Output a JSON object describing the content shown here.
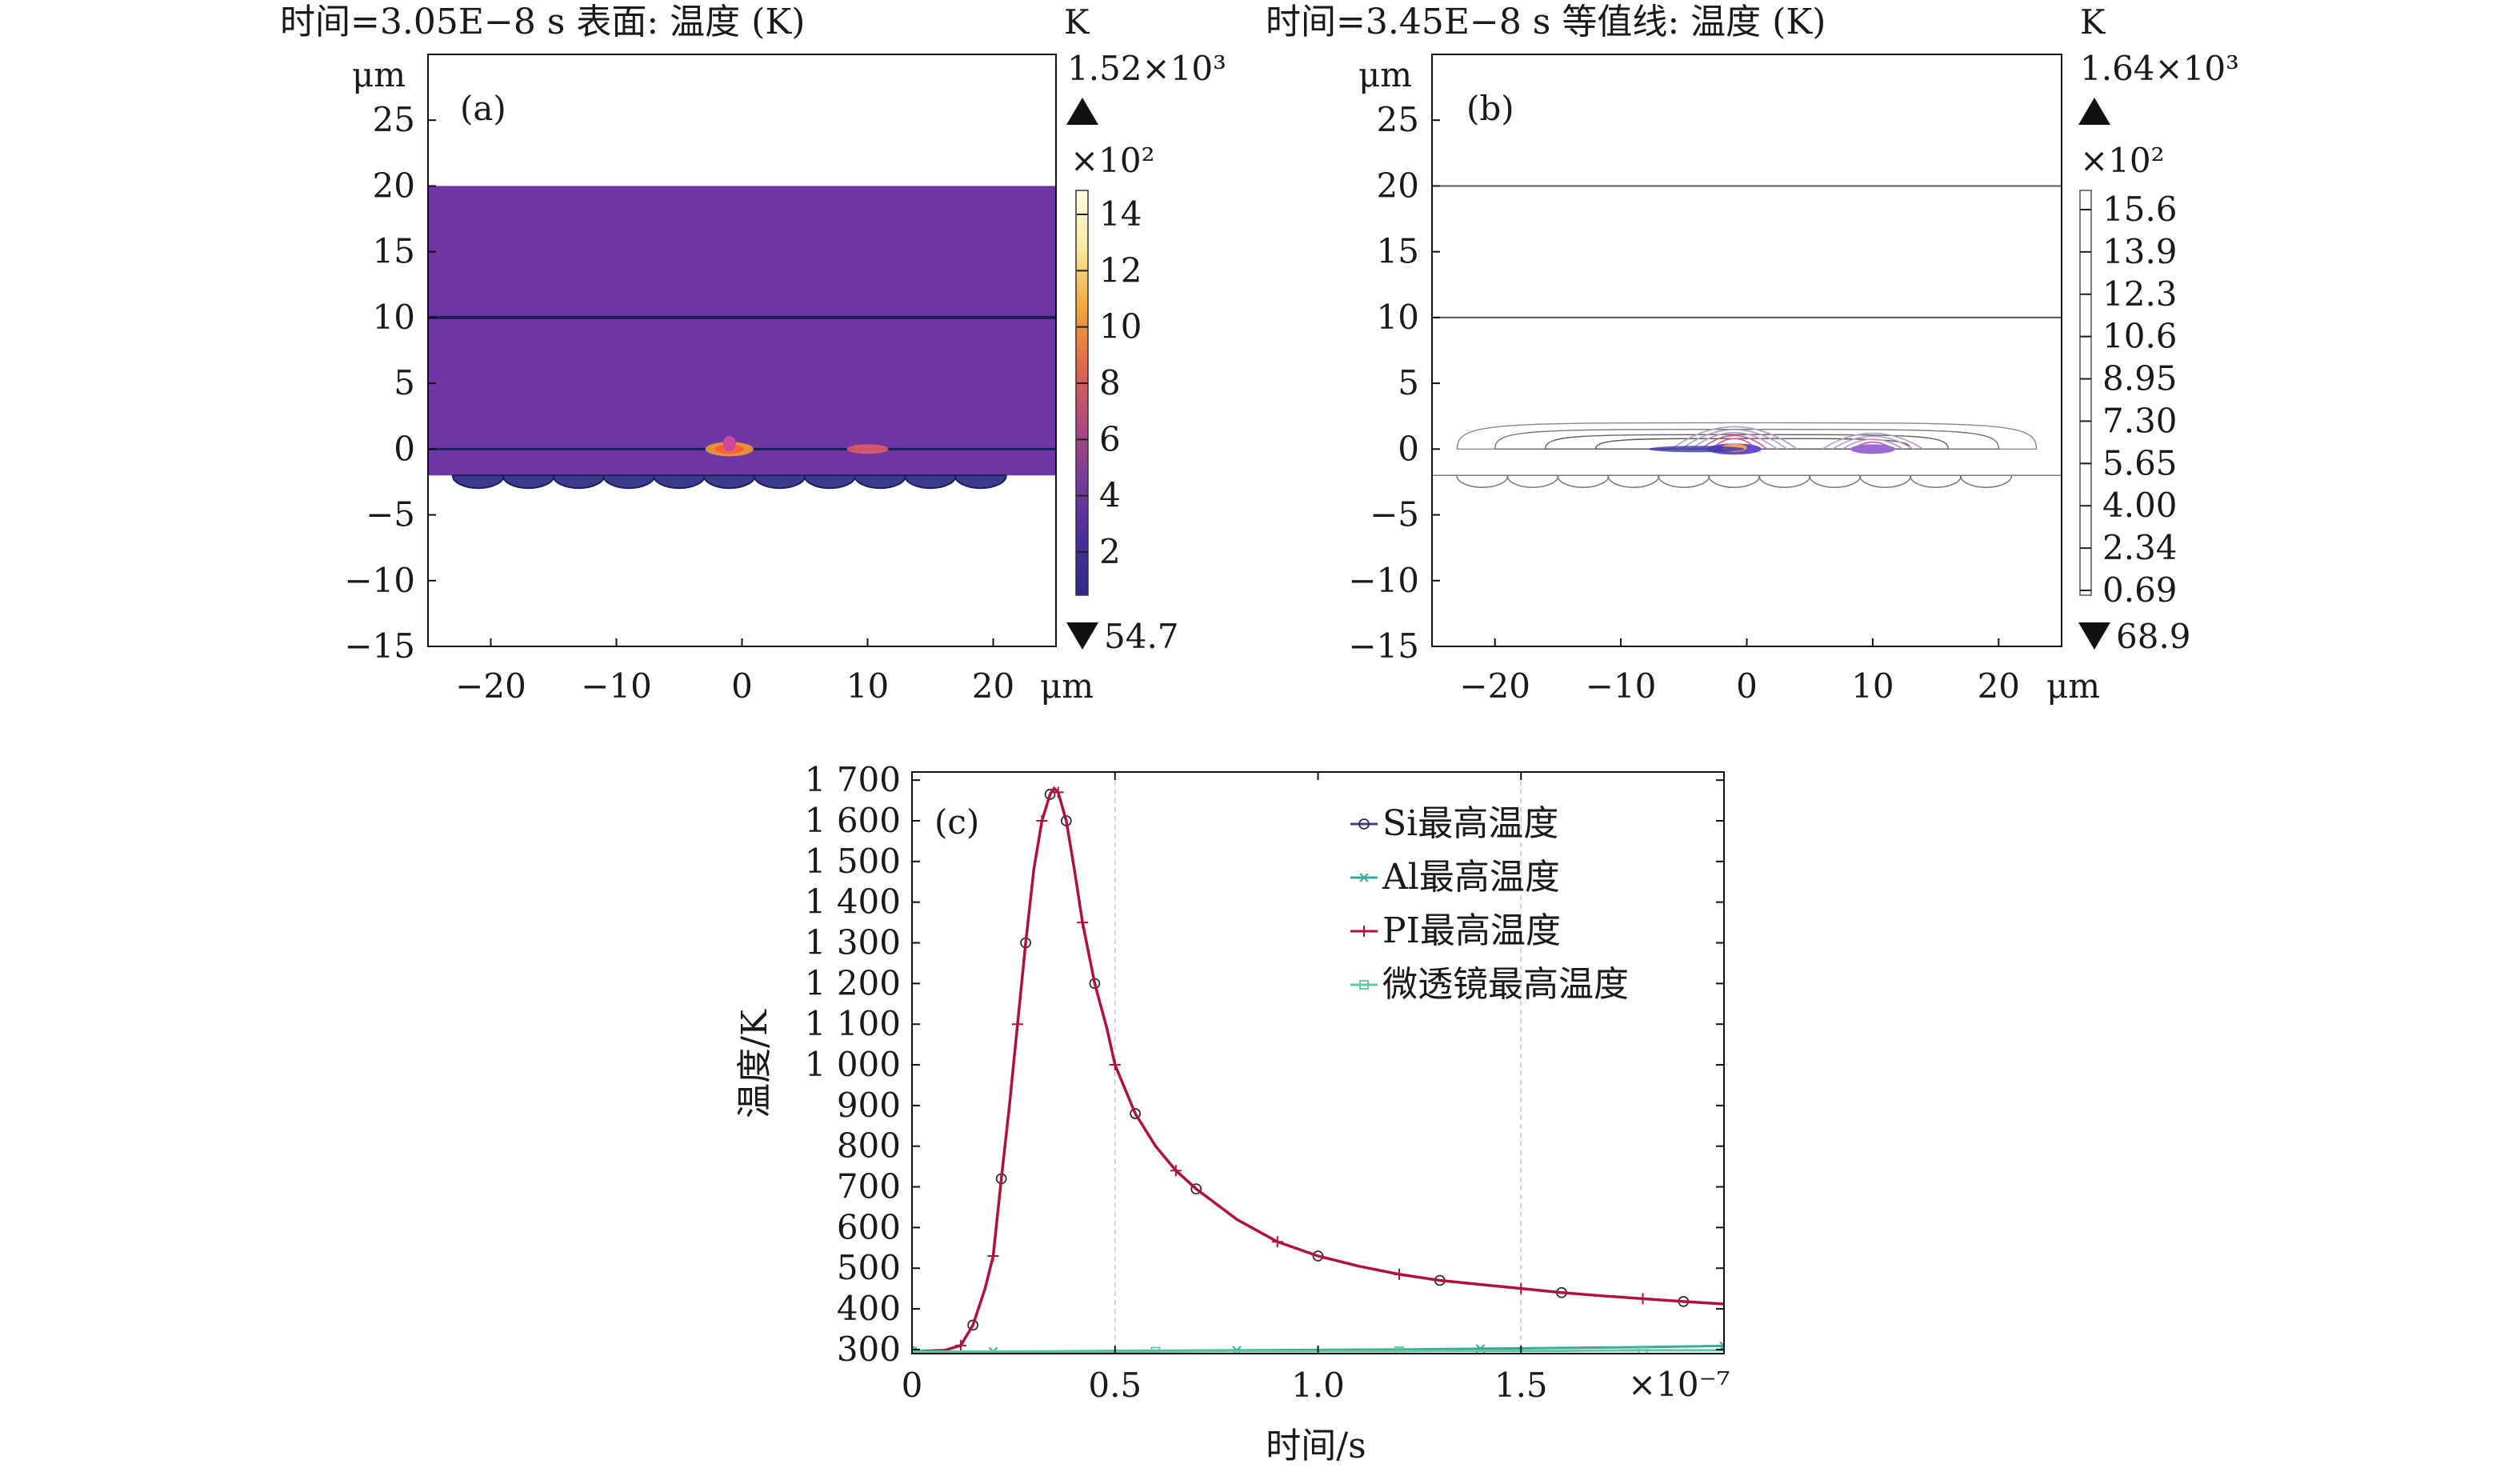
{
  "chart_data": [
    {
      "panel": "(a)",
      "type": "heatmap",
      "title": "时间=3.05E−8 s   表面: 温度 (K)",
      "unit": "K",
      "x_unit": "μm",
      "y_unit": "μm",
      "xlim": [
        -25,
        25
      ],
      "ylim": [
        -15,
        30
      ],
      "x_ticks": [
        -20,
        -10,
        0,
        10,
        20
      ],
      "y_ticks": [
        -15,
        -10,
        -5,
        0,
        5,
        10,
        15,
        20,
        25
      ],
      "colorbar": {
        "max_label": "1.52×10³",
        "multiplier": "×10²",
        "ticks": [
          "14",
          "12",
          "10",
          "8",
          "6",
          "4",
          "2"
        ],
        "min_label": "54.7",
        "stops": [
          "#2e2a8a",
          "#4a2f9c",
          "#7a3a9a",
          "#b24a7c",
          "#e06a4a",
          "#f3a83a",
          "#fbe8a0",
          "#fffde0"
        ]
      },
      "layer_colors": {
        "fill": "#6f37a3",
        "dark_line": "#1f1d5a",
        "hot": "#f0a02a"
      }
    },
    {
      "panel": "(b)",
      "type": "heatmap",
      "title": "时间=3.45E−8 s   等值线: 温度 (K)",
      "unit": "K",
      "x_unit": "μm",
      "y_unit": "μm",
      "xlim": [
        -25,
        25
      ],
      "ylim": [
        -15,
        30
      ],
      "x_ticks": [
        -20,
        -10,
        0,
        10,
        20
      ],
      "y_ticks": [
        -15,
        -10,
        -5,
        0,
        5,
        10,
        15,
        20,
        25
      ],
      "colorbar": {
        "max_label": "1.64×10³",
        "multiplier": "×10²",
        "ticks": [
          "15.6",
          "13.9",
          "12.3",
          "10.6",
          "8.95",
          "7.30",
          "5.65",
          "4.00",
          "2.34",
          "0.69"
        ],
        "min_label": "68.9"
      }
    },
    {
      "panel": "(c)",
      "type": "line",
      "xlabel": "时间/s",
      "ylabel": "温度/K",
      "x_multiplier": "×10⁻⁷",
      "xlim": [
        0,
        2.0
      ],
      "ylim": [
        290,
        1720
      ],
      "x_ticks": [
        0,
        0.5,
        1.0,
        1.5
      ],
      "x_tick_labels": [
        "0",
        "0.5",
        "1.0",
        "1.5"
      ],
      "y_ticks": [
        300,
        400,
        500,
        600,
        700,
        800,
        900,
        1000,
        1100,
        1200,
        1300,
        1400,
        1500,
        1600,
        1700
      ],
      "y_tick_labels": [
        "300",
        "400",
        "500",
        "600",
        "700",
        "800",
        "900",
        "1 000",
        "1 100",
        "1 200",
        "1 300",
        "1 400",
        "1 500",
        "1 600",
        "1 700"
      ],
      "grid_x": [
        0.5,
        1.5
      ],
      "legend_position": "top-right",
      "series": [
        {
          "name": "Si最高温度",
          "color": "#3a3f9a",
          "marker": "o",
          "x": [
            0.0,
            0.08,
            0.12,
            0.15,
            0.18,
            0.2,
            0.22,
            0.24,
            0.26,
            0.28,
            0.3,
            0.32,
            0.34,
            0.35,
            0.36,
            0.38,
            0.4,
            0.42,
            0.45,
            0.48,
            0.5,
            0.55,
            0.6,
            0.65,
            0.7,
            0.8,
            0.9,
            1.0,
            1.1,
            1.2,
            1.3,
            1.4,
            1.5,
            1.6,
            1.7,
            1.8,
            1.9,
            2.0
          ],
          "y": [
            295,
            298,
            310,
            360,
            450,
            530,
            720,
            900,
            1100,
            1300,
            1480,
            1600,
            1665,
            1680,
            1670,
            1600,
            1480,
            1350,
            1200,
            1090,
            1000,
            880,
            800,
            740,
            695,
            620,
            565,
            530,
            505,
            485,
            470,
            460,
            450,
            440,
            432,
            425,
            418,
            412
          ]
        },
        {
          "name": "Al最高温度",
          "color": "#3aa89a",
          "marker": "x",
          "x": [
            0.0,
            0.2,
            0.4,
            0.6,
            0.8,
            1.0,
            1.2,
            1.4,
            1.6,
            1.8,
            2.0
          ],
          "y": [
            295,
            295,
            296,
            297,
            298,
            299,
            300,
            302,
            304,
            306,
            309
          ]
        },
        {
          "name": "PI最高温度",
          "color": "#b0123c",
          "marker": "+",
          "x": [
            0.0,
            0.08,
            0.12,
            0.15,
            0.18,
            0.2,
            0.22,
            0.24,
            0.26,
            0.28,
            0.3,
            0.32,
            0.34,
            0.35,
            0.36,
            0.38,
            0.4,
            0.42,
            0.45,
            0.48,
            0.5,
            0.55,
            0.6,
            0.65,
            0.7,
            0.8,
            0.9,
            1.0,
            1.1,
            1.2,
            1.3,
            1.4,
            1.5,
            1.6,
            1.7,
            1.8,
            1.9,
            2.0
          ],
          "y": [
            295,
            298,
            310,
            360,
            450,
            530,
            720,
            900,
            1100,
            1300,
            1480,
            1600,
            1665,
            1680,
            1670,
            1600,
            1480,
            1350,
            1200,
            1090,
            1000,
            880,
            800,
            740,
            695,
            620,
            565,
            530,
            505,
            485,
            470,
            460,
            450,
            440,
            432,
            425,
            418,
            412
          ]
        },
        {
          "name": "微透镜最高温度",
          "color": "#5fc7a8",
          "marker": "s",
          "x": [
            0.0,
            0.2,
            0.4,
            0.6,
            0.8,
            1.0,
            1.2,
            1.4,
            1.6,
            1.8,
            2.0
          ],
          "y": [
            295,
            295,
            295,
            295,
            296,
            296,
            296,
            297,
            297,
            298,
            298
          ]
        }
      ]
    }
  ],
  "panel_c_label": "(c)"
}
